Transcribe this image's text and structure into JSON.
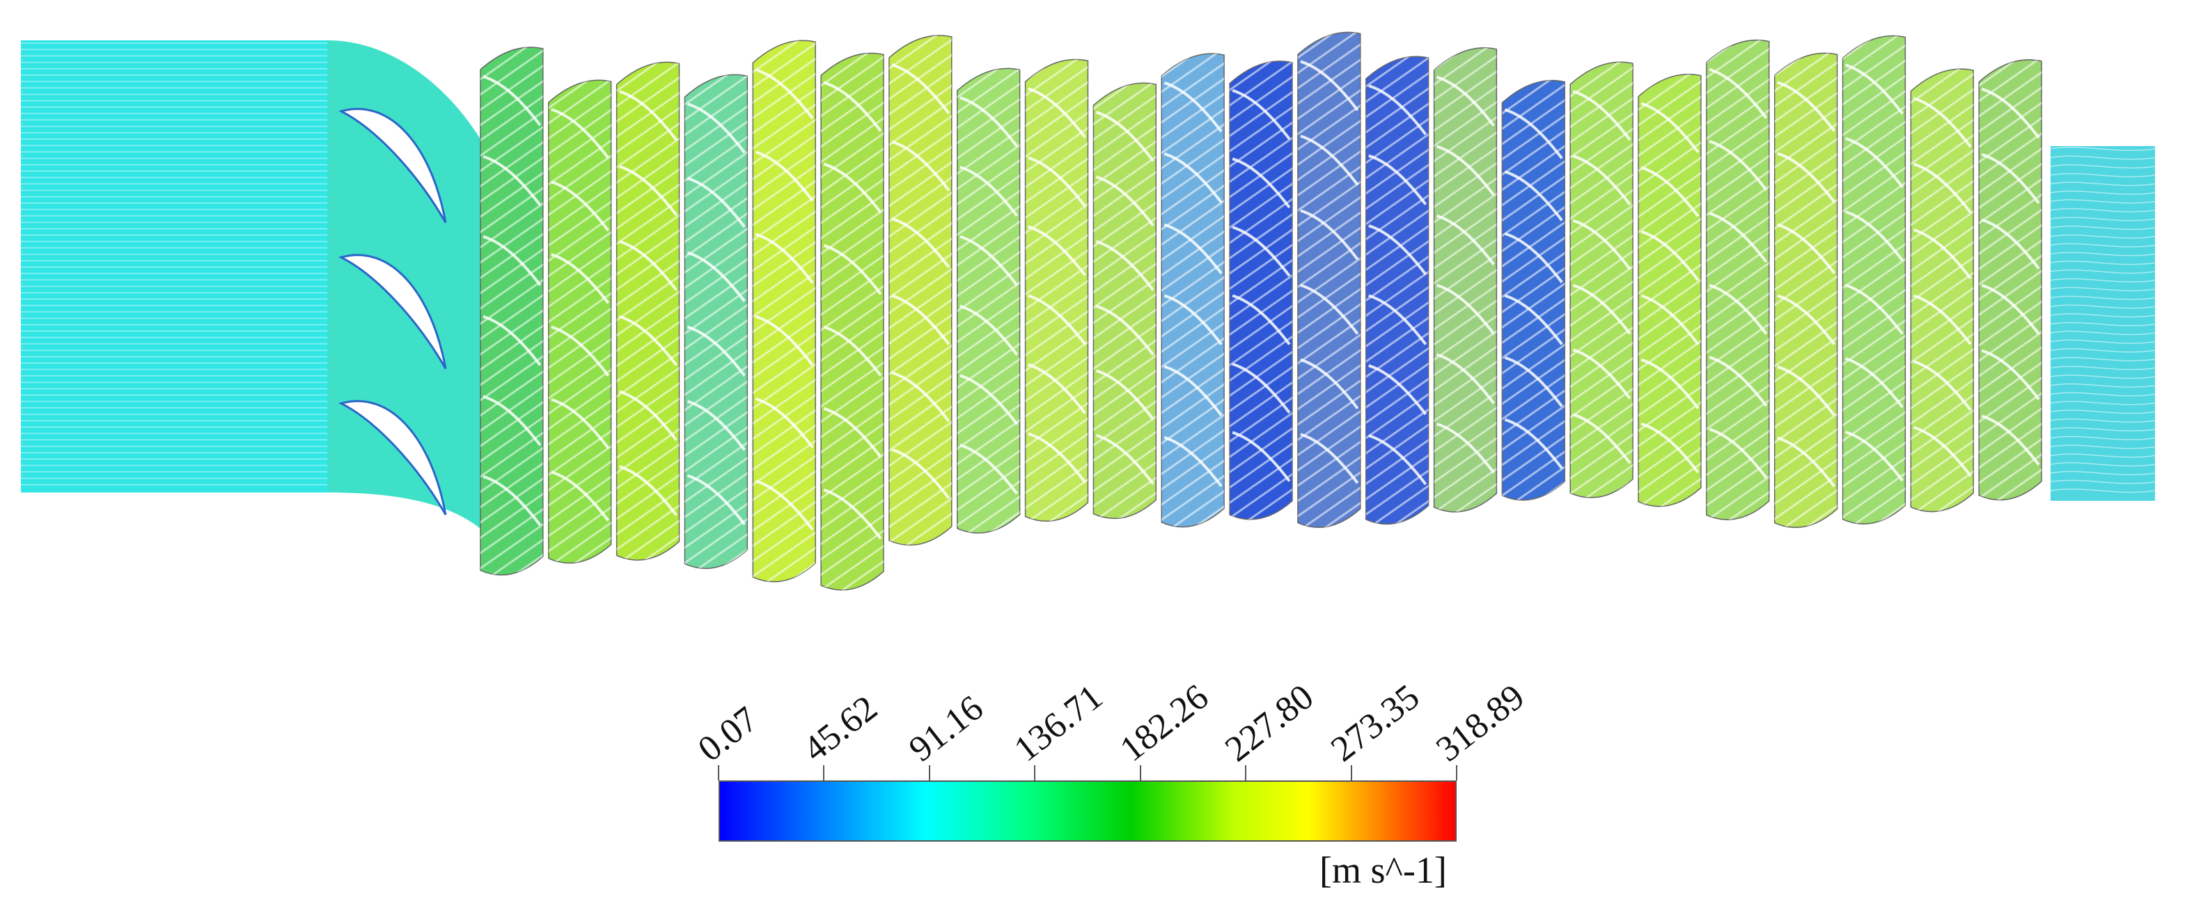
{
  "legend": {
    "tick_labels": [
      "0.07",
      "45.62",
      "91.16",
      "136.71",
      "182.26",
      "227.80",
      "273.35",
      "318.89"
    ],
    "unit": "[m s^-1]",
    "range": [
      0.07,
      318.89
    ],
    "colormap": [
      {
        "pos": 0.0,
        "color": "#0000ff"
      },
      {
        "pos": 0.14,
        "color": "#0080ff"
      },
      {
        "pos": 0.28,
        "color": "#00ffff"
      },
      {
        "pos": 0.42,
        "color": "#00ff80"
      },
      {
        "pos": 0.56,
        "color": "#00d000"
      },
      {
        "pos": 0.7,
        "color": "#c0ff00"
      },
      {
        "pos": 0.8,
        "color": "#ffff00"
      },
      {
        "pos": 0.9,
        "color": "#ff8000"
      },
      {
        "pos": 1.0,
        "color": "#ff0000"
      }
    ]
  },
  "flow_field": {
    "inlet_color": "#33e6e6",
    "outlet_color": "#4fd6e0",
    "stage_colors": [
      "#55d06a",
      "#8fe04a",
      "#b2e83a",
      "#6fd8a0",
      "#c8ee40",
      "#a6e04c",
      "#c4e84a",
      "#9fe070",
      "#bfe85a",
      "#b0e060",
      "#6fb0e0",
      "#2e58d8",
      "#5b80d0",
      "#3a60d8",
      "#9ad080",
      "#3b6fd8",
      "#a8e060",
      "#b0e650",
      "#a0dc6a",
      "#b8e45a",
      "#9cdc70",
      "#b4e460",
      "#9ad670"
    ]
  }
}
